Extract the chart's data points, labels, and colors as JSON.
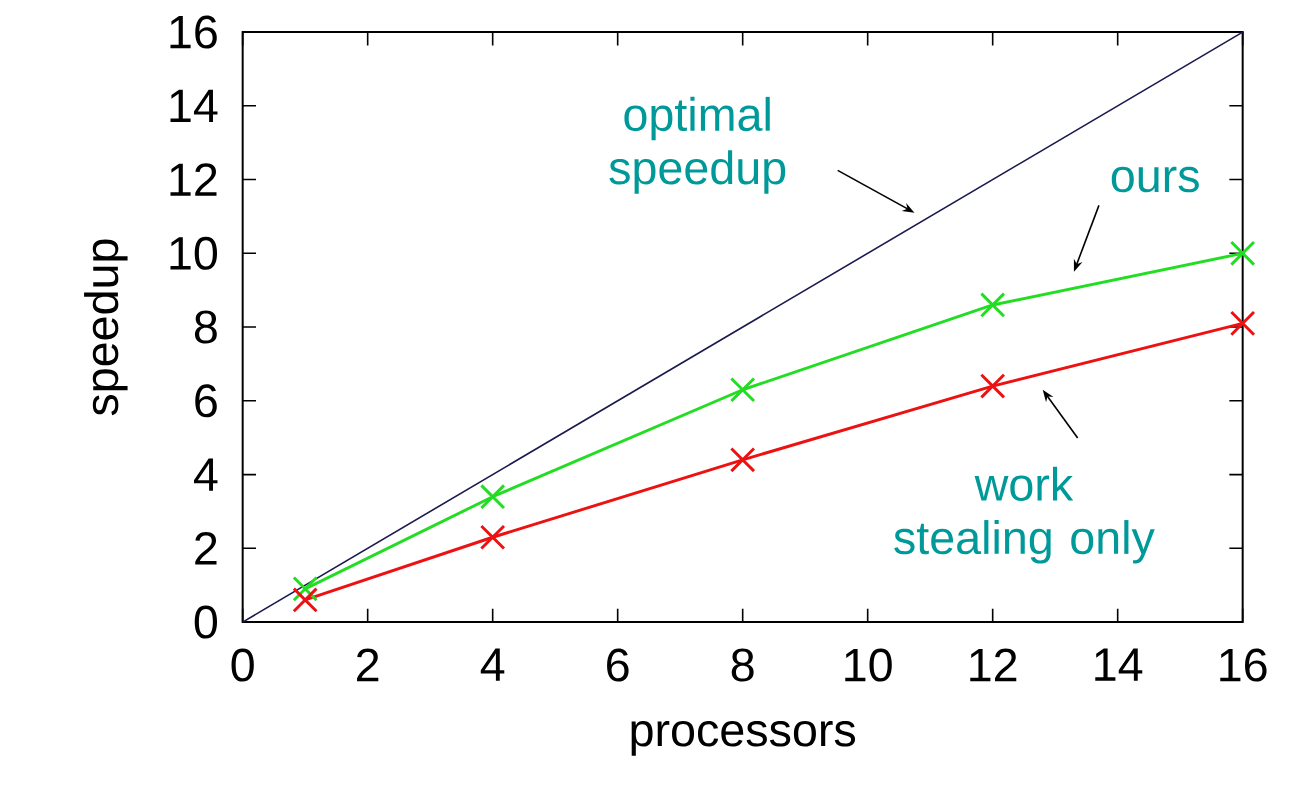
{
  "chart_data": {
    "type": "line",
    "xlabel": "processors",
    "ylabel": "speedup",
    "xlim": [
      0,
      16
    ],
    "ylim": [
      0,
      16
    ],
    "xticks": [
      0,
      2,
      4,
      6,
      8,
      10,
      12,
      14,
      16
    ],
    "yticks": [
      0,
      2,
      4,
      6,
      8,
      10,
      12,
      14,
      16
    ],
    "series": [
      {
        "color": "#1a1a4d",
        "x": [
          0,
          16
        ],
        "values": [
          0,
          16
        ],
        "marker": "none"
      },
      {
        "color": "#22dd22",
        "x": [
          1,
          4,
          8,
          12,
          16
        ],
        "values": [
          0.9,
          3.4,
          6.3,
          8.6,
          10.0
        ],
        "marker": "cross"
      },
      {
        "color": "#ee1111",
        "x": [
          1,
          4,
          8,
          12,
          16
        ],
        "values": [
          0.6,
          2.3,
          4.4,
          6.4,
          8.1
        ],
        "marker": "cross"
      }
    ],
    "annotations": [
      "optimal speedup",
      "ours",
      "work stealing only"
    ]
  }
}
